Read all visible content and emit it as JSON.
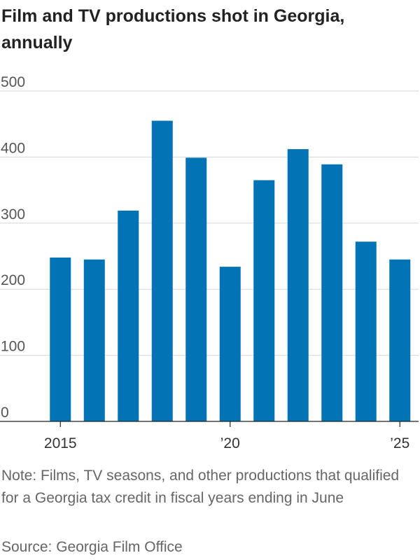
{
  "chart_data": {
    "type": "bar",
    "title": "Film and TV productions shot in Georgia, annually",
    "xlabel": "",
    "ylabel": "",
    "categories": [
      "2015",
      "2016",
      "2017",
      "2018",
      "2019",
      "2020",
      "2021",
      "2022",
      "2023",
      "2024",
      "2025"
    ],
    "x_tick_labels": [
      {
        "category": "2015",
        "label": "2015"
      },
      {
        "category": "2020",
        "label": "’20"
      },
      {
        "category": "2025",
        "label": "’25"
      }
    ],
    "values": [
      248,
      245,
      319,
      455,
      399,
      234,
      365,
      412,
      389,
      272,
      245
    ],
    "ylim": [
      0,
      500
    ],
    "yticks": [
      0,
      100,
      200,
      300,
      400,
      500
    ],
    "grid": true,
    "colors": {
      "bar": "#0274b6",
      "grid": "#d6d6d6",
      "axis": "#222222"
    }
  },
  "footer": {
    "note": "Note: Films, TV seasons, and other productions that qualified for a Georgia tax credit in fiscal years ending in June",
    "source": "Source: Georgia Film Office"
  }
}
